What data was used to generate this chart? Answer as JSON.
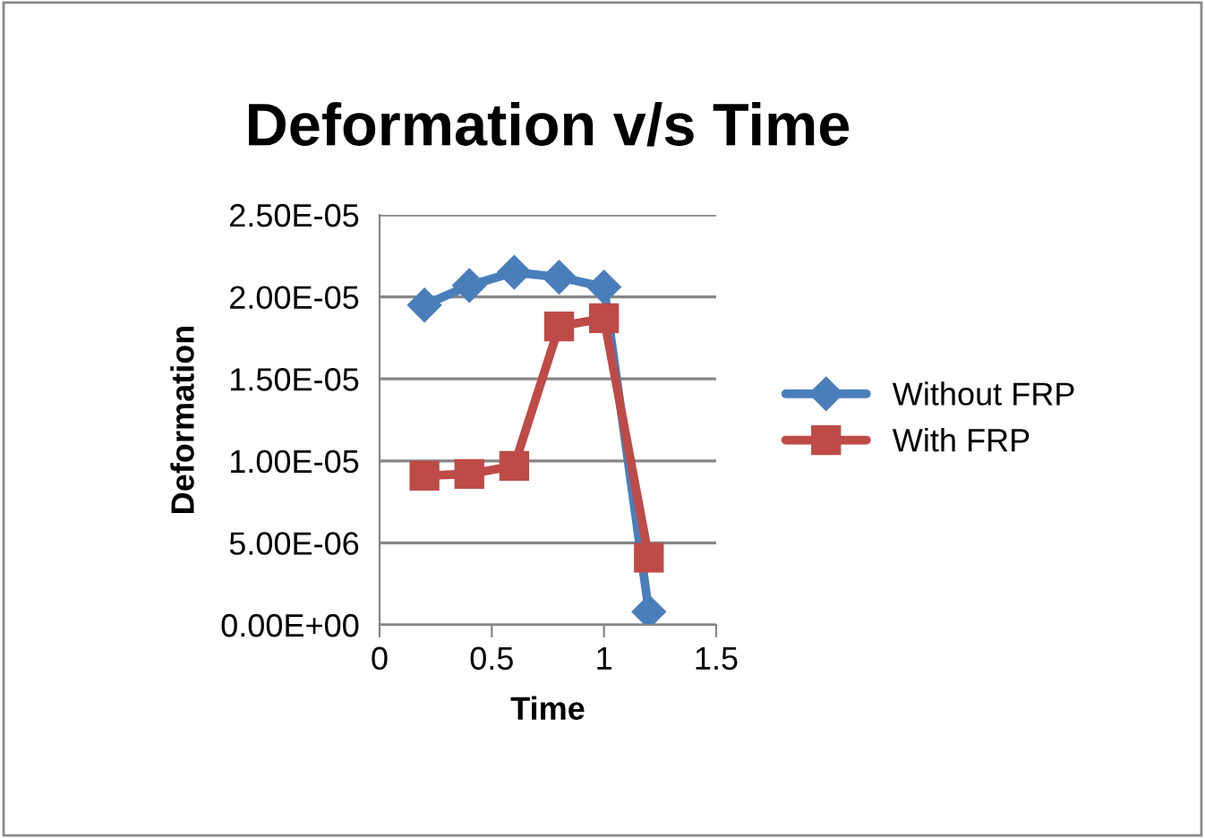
{
  "chart_data": {
    "type": "line",
    "title": "Deformation v/s Time",
    "xlabel": "Time",
    "ylabel": "Deformation",
    "x": [
      0.2,
      0.4,
      0.6,
      0.8,
      1.0,
      1.2
    ],
    "series": [
      {
        "name": "Without FRP",
        "color": "#4a7ebb",
        "marker": "diamond",
        "values": [
          1.95e-05,
          2.07e-05,
          2.15e-05,
          2.12e-05,
          2.06e-05,
          8e-07
        ]
      },
      {
        "name": "With FRP",
        "color": "#be4b48",
        "marker": "square",
        "values": [
          9.1e-06,
          9.2e-06,
          9.7e-06,
          1.82e-05,
          1.87e-05,
          4.1e-06
        ]
      }
    ],
    "xlim": [
      0,
      1.5
    ],
    "xticks": [
      0,
      0.5,
      1,
      1.5
    ],
    "ylim": [
      0,
      2.5e-05
    ],
    "yticks": [
      {
        "value": 0,
        "label": "0.00E+00"
      },
      {
        "value": 5e-06,
        "label": "5.00E-06"
      },
      {
        "value": 1e-05,
        "label": "1.00E-05"
      },
      {
        "value": 1.5e-05,
        "label": "1.50E-05"
      },
      {
        "value": 2e-05,
        "label": "2.00E-05"
      },
      {
        "value": 2.5e-05,
        "label": "2.50E-05"
      }
    ],
    "grid": "y",
    "legend": "right",
    "line_style": "solid"
  }
}
